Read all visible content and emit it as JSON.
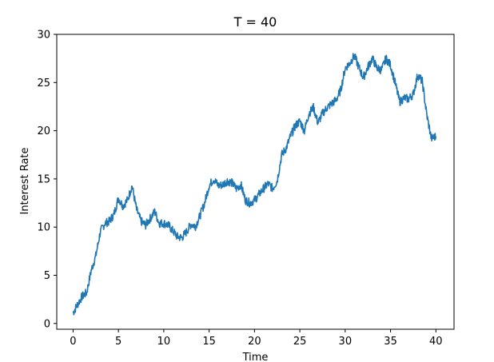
{
  "chart_data": {
    "type": "line",
    "title": "T = 40",
    "xlabel": "Time",
    "ylabel": "Interest Rate",
    "xlim": [
      -1.8,
      42
    ],
    "ylim": [
      -0.6,
      30
    ],
    "xticks": [
      0,
      5,
      10,
      15,
      20,
      25,
      30,
      35,
      40
    ],
    "yticks": [
      0,
      5,
      10,
      15,
      20,
      25,
      30
    ],
    "grid": false,
    "series": [
      {
        "color": "#1f77b4",
        "x": [
          0,
          0.5,
          1,
          1.5,
          2,
          2.5,
          3,
          3.5,
          4,
          4.5,
          5,
          5.5,
          6,
          6.5,
          7,
          7.5,
          8,
          8.5,
          9,
          9.5,
          10,
          10.5,
          11,
          11.5,
          12,
          12.5,
          13,
          13.5,
          14,
          14.5,
          15,
          15.5,
          16,
          16.5,
          17,
          17.5,
          18,
          18.5,
          19,
          19.5,
          20,
          20.5,
          21,
          21.5,
          22,
          22.5,
          23,
          23.5,
          24,
          24.5,
          25,
          25.5,
          26,
          26.5,
          27,
          27.5,
          28,
          28.5,
          29,
          29.5,
          30,
          30.5,
          31,
          31.5,
          32,
          32.5,
          33,
          33.5,
          34,
          34.5,
          35,
          35.5,
          36,
          36.5,
          37,
          37.5,
          38,
          38.5,
          39,
          39.5,
          40
        ],
        "y": [
          1.1,
          2.0,
          2.8,
          3.2,
          5.5,
          7.0,
          9.5,
          10.4,
          10.6,
          11.3,
          13.0,
          12.2,
          12.8,
          14.3,
          11.8,
          10.6,
          10.2,
          10.9,
          11.6,
          10.4,
          10.4,
          10.2,
          9.6,
          9.0,
          8.9,
          9.5,
          10.3,
          10.1,
          11.2,
          12.5,
          14.3,
          15.0,
          14.3,
          14.4,
          14.8,
          14.6,
          14.0,
          14.4,
          12.8,
          12.5,
          12.8,
          13.4,
          14.0,
          14.5,
          14.0,
          14.8,
          17.5,
          18.2,
          19.5,
          20.5,
          21.0,
          20.0,
          21.8,
          22.4,
          20.8,
          21.8,
          22.4,
          22.8,
          23.2,
          24.2,
          26.5,
          27.0,
          27.8,
          26.6,
          25.5,
          26.6,
          27.5,
          26.5,
          26.3,
          27.5,
          26.8,
          25.0,
          23.0,
          23.4,
          23.3,
          23.8,
          25.8,
          25.1,
          21.6,
          19.2,
          19.4
        ]
      }
    ]
  }
}
